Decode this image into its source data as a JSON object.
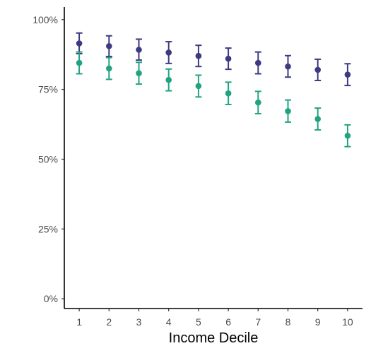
{
  "chart_data": {
    "type": "scatter",
    "title": "",
    "xlabel": "Income Decile",
    "ylabel": "",
    "x": [
      1,
      2,
      3,
      4,
      5,
      6,
      7,
      8,
      9,
      10
    ],
    "x_ticks": [
      "1",
      "2",
      "3",
      "4",
      "5",
      "6",
      "7",
      "8",
      "9",
      "10"
    ],
    "y_ticks": [
      {
        "value": 0,
        "label": "0%"
      },
      {
        "value": 25,
        "label": "25%"
      },
      {
        "value": 50,
        "label": "50%"
      },
      {
        "value": 75,
        "label": "75%"
      },
      {
        "value": 100,
        "label": "100%"
      }
    ],
    "xlim": [
      0.5,
      10.5
    ],
    "ylim": [
      -3.5,
      104.5
    ],
    "grid": false,
    "legend": "none",
    "series": [
      {
        "color": "#3d3a81",
        "values": [
          91.5,
          90.5,
          89.2,
          88.2,
          87.0,
          86.0,
          84.5,
          83.2,
          82.0,
          80.3
        ],
        "lower": [
          87.8,
          86.8,
          85.5,
          84.3,
          83.2,
          82.2,
          80.6,
          79.4,
          78.2,
          76.4
        ],
        "upper": [
          95.2,
          94.2,
          93.0,
          92.1,
          90.8,
          89.8,
          88.4,
          87.1,
          85.8,
          84.2
        ]
      },
      {
        "color": "#21a383",
        "values": [
          84.5,
          82.5,
          80.8,
          78.4,
          76.2,
          73.6,
          70.3,
          67.2,
          64.4,
          58.4
        ],
        "lower": [
          80.6,
          78.6,
          76.9,
          74.5,
          72.3,
          69.6,
          66.3,
          63.3,
          60.5,
          54.5
        ],
        "upper": [
          88.4,
          86.4,
          84.7,
          82.3,
          80.1,
          77.6,
          74.3,
          71.2,
          68.3,
          62.3
        ]
      }
    ]
  }
}
